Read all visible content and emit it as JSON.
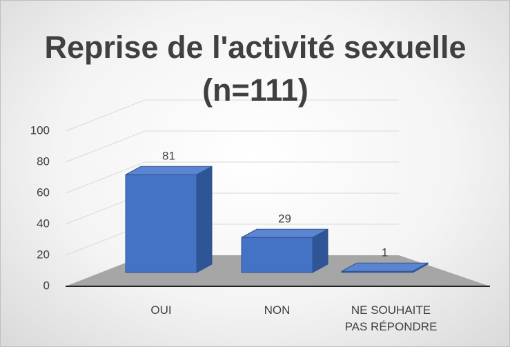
{
  "chart_data": {
    "type": "bar3d",
    "title": "Reprise de l'activité sexuelle (n=111)",
    "categories": [
      "OUI",
      "NON",
      "NE SOUHAITE PAS RÉPONDRE"
    ],
    "values": [
      81,
      29,
      1
    ],
    "color": "#4472c4",
    "ylim": [
      0,
      100
    ],
    "yticks": [
      0,
      20,
      40,
      60,
      80,
      100
    ],
    "grid": true
  }
}
